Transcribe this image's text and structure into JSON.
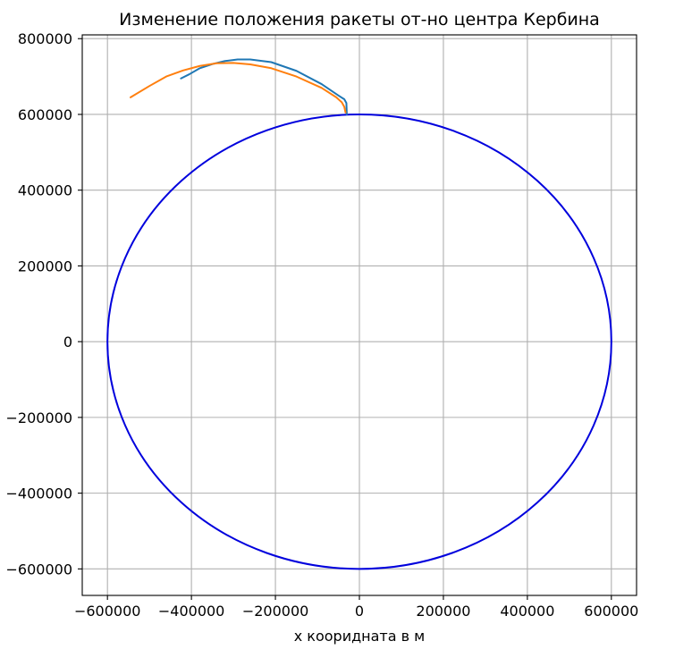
{
  "chart_data": {
    "type": "line",
    "title": "Изменение положения ракеты от-но центра Кербина",
    "xlabel": "x коориднатa в м",
    "ylabel": "",
    "xlim": [
      -660000,
      660000
    ],
    "ylim": [
      -670000,
      810000
    ],
    "xticks": [
      -600000,
      -400000,
      -200000,
      0,
      200000,
      400000,
      600000
    ],
    "xtick_labels": [
      "−600000",
      "−400000",
      "−200000",
      "0",
      "200000",
      "400000",
      "600000"
    ],
    "yticks": [
      -600000,
      -400000,
      -200000,
      0,
      200000,
      400000,
      600000,
      800000
    ],
    "ytick_labels": [
      "−600000",
      "−400000",
      "−200000",
      "0",
      "200000",
      "400000",
      "600000",
      "800000"
    ],
    "grid": true,
    "series": [
      {
        "color": "#0000dd",
        "shape": "circle",
        "center": [
          0,
          0
        ],
        "radius": 600000
      },
      {
        "color": "#1f77b4",
        "x": [
          -30000,
          -31000,
          -36000,
          -50000,
          -90000,
          -150000,
          -210000,
          -260000,
          -290000,
          -320000,
          -350000,
          -380000,
          -405000,
          -425000
        ],
        "y": [
          600000,
          630000,
          640000,
          650000,
          680000,
          715000,
          738000,
          745000,
          745000,
          741000,
          733000,
          722000,
          706000,
          695000
        ]
      },
      {
        "color": "#ff7f0e",
        "x": [
          -33000,
          -36000,
          -42000,
          -55000,
          -90000,
          -150000,
          -210000,
          -260000,
          -300000,
          -340000,
          -380000,
          -420000,
          -460000,
          -500000,
          -545000
        ],
        "y": [
          605000,
          620000,
          632000,
          645000,
          670000,
          700000,
          722000,
          732000,
          736000,
          735000,
          728000,
          716000,
          700000,
          675000,
          645000
        ]
      }
    ]
  }
}
